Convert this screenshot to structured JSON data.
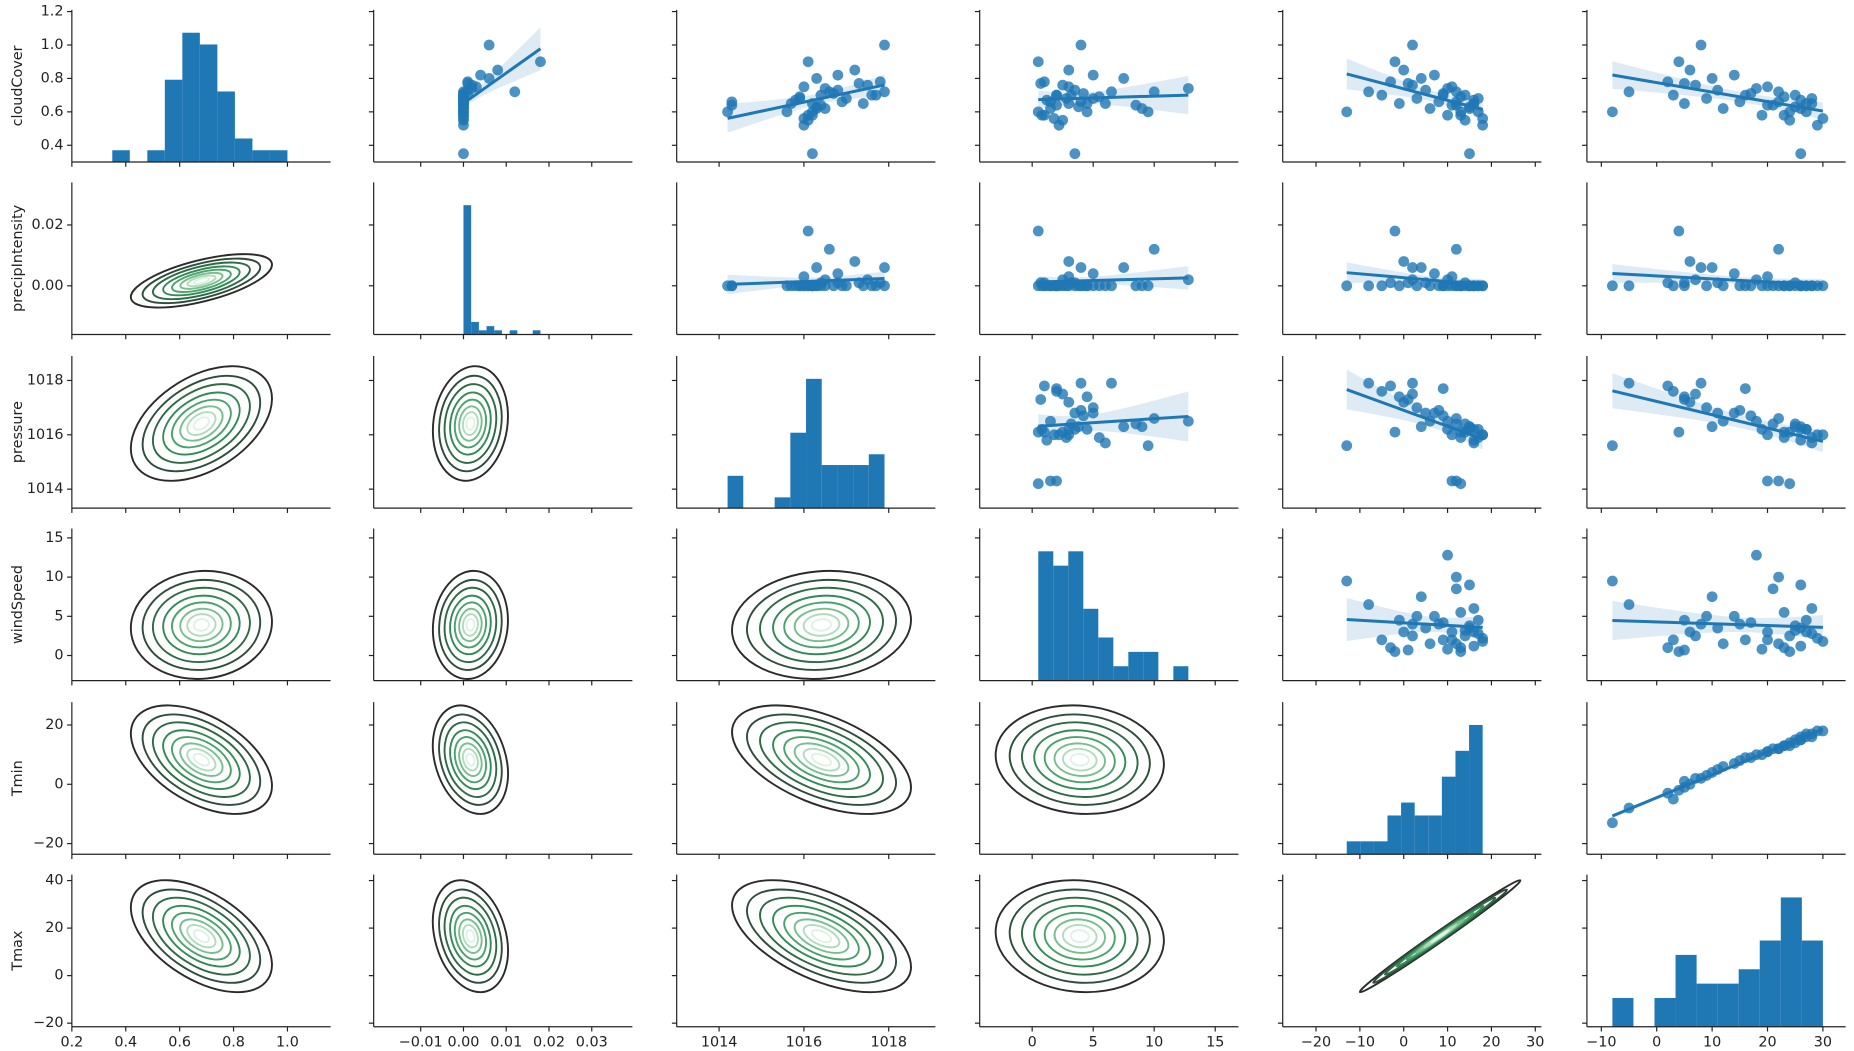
{
  "chart_data": {
    "type": "pairplot",
    "diag": "hist",
    "upper": "regplot",
    "lower": "kde",
    "color": "#1f77b4",
    "series": [
      {
        "name": "cloudCover",
        "values": [
          0.7,
          0.78,
          0.65,
          0.85,
          0.72,
          0.6,
          0.76,
          0.9,
          0.68,
          0.73,
          0.62,
          0.8,
          0.66,
          0.7,
          0.58,
          0.75,
          0.64,
          0.69,
          0.55,
          0.72,
          0.63,
          0.67,
          0.6,
          0.52,
          0.65,
          0.7,
          0.58,
          0.62,
          0.68,
          0.35,
          0.66,
          0.6,
          0.64,
          0.74,
          1.0,
          0.82,
          0.56,
          0.65,
          0.71,
          0.77
        ],
        "xlim": [
          0.2,
          1.16
        ],
        "xticks": [
          0.2,
          0.4,
          0.6,
          0.8,
          {
            "value": 1,
            "label": "1.0"
          }
        ],
        "ylim": [
          0.3,
          1.21
        ],
        "yticks": [
          0.4,
          0.6,
          0.8,
          {
            "value": 1,
            "label": "1.0"
          },
          1.2
        ]
      },
      {
        "name": "precipIntensity",
        "values": [
          0,
          0.001,
          0,
          0.008,
          0,
          0,
          0.002,
          0.018,
          0,
          0.001,
          0,
          0.006,
          0,
          0,
          0,
          0.003,
          0,
          0,
          0,
          0.012,
          0,
          0,
          0,
          0,
          0,
          0.001,
          0,
          0,
          0,
          0,
          0,
          0,
          0,
          0.002,
          0.006,
          0.004,
          0,
          0,
          0,
          0.001
        ],
        "xlim": [
          -0.021,
          0.0395
        ],
        "xticks": [
          {
            "value": -0.01,
            "label": "−0.01"
          },
          {
            "value": 0,
            "label": "0.00"
          },
          0.01,
          0.02,
          0.03
        ],
        "ylim": [
          -0.016,
          0.034
        ],
        "yticks": [
          {
            "value": 0,
            "label": "0.00"
          },
          0.02
        ]
      },
      {
        "name": "pressure",
        "values": [
          1017.6,
          1017.8,
          1017.4,
          1017.2,
          1017.9,
          1015.6,
          1017.5,
          1016.1,
          1017.0,
          1016.8,
          1016.5,
          1016.3,
          1016.9,
          1017.7,
          1016.2,
          1016.0,
          1016.4,
          1015.9,
          1016.1,
          1016.6,
          1016.3,
          1015.8,
          1016.2,
          1016.0,
          1015.7,
          1016.4,
          1016.1,
          1016.3,
          1015.9,
          1016.2,
          1014.3,
          1014.2,
          1014.3,
          1016.5,
          1017.9,
          1016.8,
          1016.0,
          1016.2,
          1016.7,
          1017.3
        ],
        "xlim": [
          1013,
          1019.1
        ],
        "xticks": [
          1014,
          1016,
          1018
        ],
        "ylim": [
          1013.3,
          1018.9
        ],
        "yticks": [
          1014,
          1016,
          1018
        ]
      },
      {
        "name": "windSpeed",
        "values": [
          2.0,
          1.0,
          4.5,
          3.0,
          6.5,
          9.5,
          2.5,
          0.5,
          5.0,
          3.5,
          1.5,
          7.5,
          4.0,
          2.0,
          0.8,
          3.0,
          8.5,
          5.5,
          2.5,
          10.0,
          3.8,
          1.2,
          4.5,
          2.2,
          6.0,
          3.2,
          1.0,
          9.0,
          2.8,
          3.5,
          1.5,
          0.5,
          2.0,
          12.8,
          4.0,
          5.0,
          1.8,
          3.0,
          4.2,
          0.7
        ],
        "xlim": [
          -4.3,
          16.9
        ],
        "xticks": [
          0,
          5,
          10,
          15
        ],
        "ylim": [
          -3.2,
          16.2
        ],
        "yticks": [
          0,
          5,
          10,
          15
        ]
      },
      {
        "name": "Tmin",
        "values": [
          -5,
          -3,
          -1,
          0,
          -8,
          -13,
          2,
          -2,
          3,
          5,
          6,
          4,
          8,
          9,
          10,
          11,
          12,
          13,
          14,
          12,
          15,
          16,
          17,
          18,
          16,
          14,
          13,
          15,
          17,
          15,
          12,
          13,
          11,
          10,
          2,
          7,
          18,
          16,
          9,
          1
        ],
        "xlim": [
          -27.6,
          31.4
        ],
        "xticks": [
          {
            "value": -20,
            "label": "−20"
          },
          {
            "value": -10,
            "label": "−10"
          },
          0,
          10,
          20,
          30
        ],
        "ylim": [
          -23.6,
          27.7
        ],
        "yticks": [
          {
            "value": -20,
            "label": "−20"
          },
          0,
          20
        ]
      },
      {
        "name": "Tmax",
        "values": [
          3,
          2,
          5,
          6,
          -5,
          -8,
          7,
          4,
          9,
          11,
          12,
          10,
          15,
          16,
          19,
          20,
          21,
          23,
          24,
          22,
          25,
          26,
          27,
          29,
          28,
          25,
          23,
          26,
          28,
          26,
          22,
          24,
          20,
          18,
          8,
          14,
          30,
          27,
          17,
          5
        ],
        "xlim": [
          -12.6,
          34.1
        ],
        "xticks": [
          {
            "value": -10,
            "label": "−10"
          },
          0,
          10,
          20,
          30
        ],
        "ylim": [
          -21.5,
          42.5
        ],
        "yticks": [
          {
            "value": -20,
            "label": "−20"
          },
          0,
          20,
          40
        ]
      }
    ]
  }
}
